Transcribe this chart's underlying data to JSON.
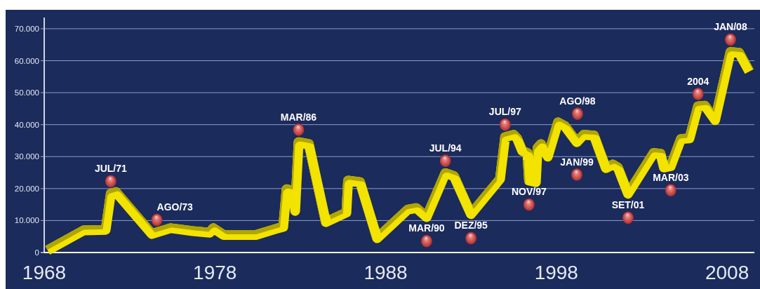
{
  "chart_data": {
    "type": "line",
    "x": [
      1968.2,
      1970.3,
      1971.6,
      1971.9,
      1972.2,
      1974.3,
      1975.4,
      1976.7,
      1977.7,
      1977.9,
      1978.5,
      1980.4,
      1981.7,
      1982.0,
      1982.2,
      1982.6,
      1982.7,
      1982.9,
      1983.5,
      1984.5,
      1985.7,
      1985.8,
      1986.5,
      1987.5,
      1989.3,
      1989.8,
      1990.4,
      1991.5,
      1992.0,
      1993.0,
      1994.7,
      1995.0,
      1995.5,
      1995.7,
      1996.0,
      1996.3,
      1996.4,
      1996.8,
      1996.9,
      1997.1,
      1997.5,
      1998.1,
      1998.5,
      1999.2,
      1999.6,
      2000.2,
      2000.9,
      2001.3,
      2001.6,
      2002.2,
      2003.7,
      2004.1,
      2004.3,
      2004.7,
      2005.3,
      2005.8,
      2006.3,
      2006.7,
      2007.3,
      2008.2,
      2008.7,
      2009.3
    ],
    "series": [
      {
        "color": "#f2e300",
        "values": [
          700,
          6900,
          7100,
          18400,
          18900,
          5800,
          7600,
          6700,
          6200,
          7600,
          5500,
          5500,
          7600,
          8000,
          19800,
          19300,
          13000,
          34500,
          33900,
          9500,
          12500,
          22500,
          22000,
          4500,
          13400,
          13900,
          11100,
          24800,
          23900,
          12000,
          23000,
          36100,
          36800,
          35700,
          31800,
          31100,
          22500,
          22000,
          32700,
          33900,
          30000,
          40700,
          39500,
          34500,
          36800,
          36600,
          26400,
          27500,
          26600,
          18400,
          31100,
          30900,
          26600,
          27000,
          35500,
          35700,
          45700,
          45900,
          41400,
          62700,
          62500,
          56600
        ]
      }
    ],
    "xlim": [
      1968,
      2009.6
    ],
    "xticks": [
      1968,
      1978,
      1988,
      1998,
      2008
    ],
    "ylim": [
      0,
      73500
    ],
    "yticks": [
      0,
      {
        "value": 10000,
        "label": "10.000"
      },
      {
        "value": 20000,
        "label": "20.000"
      },
      {
        "value": 30000,
        "label": "30.000"
      },
      {
        "value": 40000,
        "label": "40.000"
      },
      {
        "value": 50000,
        "label": "50.000"
      },
      {
        "value": 60000,
        "label": "60.000"
      },
      {
        "value": 70000,
        "label": "70.000"
      }
    ],
    "grid": "y",
    "annotations": [
      {
        "text": "JUL/71",
        "x": 1971.9,
        "y": 18400
      },
      {
        "text": "AGO/73",
        "x": 1974.6,
        "y": 6300
      },
      {
        "text": "MAR/86",
        "x": 1982.9,
        "y": 34500
      },
      {
        "text": "MAR/90",
        "x": 1990.4,
        "y": 11100
      },
      {
        "text": "JUL/94",
        "x": 1991.5,
        "y": 24800
      },
      {
        "text": "DEZ/95",
        "x": 1993.0,
        "y": 12000
      },
      {
        "text": "JUL/97",
        "x": 1995.0,
        "y": 36100
      },
      {
        "text": "NOV/97",
        "x": 1996.4,
        "y": 22500
      },
      {
        "text": "AGO/98",
        "x": 1998.5,
        "y": 39500
      },
      {
        "text": "JAN/99",
        "x": 1999.2,
        "y": 34500
      },
      {
        "text": "SET/01",
        "x": 2002.2,
        "y": 18400
      },
      {
        "text": "MAR/03",
        "x": 2004.7,
        "y": 27000
      },
      {
        "text": "2004",
        "x": 2006.3,
        "y": 45700
      },
      {
        "text": "JAN/08",
        "x": 2008.2,
        "y": 62700
      }
    ]
  }
}
